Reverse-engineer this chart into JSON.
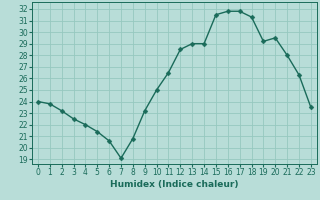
{
  "x": [
    0,
    1,
    2,
    3,
    4,
    5,
    6,
    7,
    8,
    9,
    10,
    11,
    12,
    13,
    14,
    15,
    16,
    17,
    18,
    19,
    20,
    21,
    22,
    23
  ],
  "y": [
    24.0,
    23.8,
    23.2,
    22.5,
    22.0,
    21.4,
    20.6,
    19.1,
    20.8,
    23.2,
    25.0,
    26.5,
    28.5,
    29.0,
    29.0,
    31.5,
    31.8,
    31.8,
    31.3,
    29.2,
    29.5,
    28.0,
    26.3,
    23.5
  ],
  "line_color": "#1a6b5a",
  "marker": "D",
  "markersize": 2.5,
  "linewidth": 1.0,
  "bg_color": "#b8ddd8",
  "grid_color": "#96c8c0",
  "tick_color": "#1a6b5a",
  "xlabel": "Humidex (Indice chaleur)",
  "ylabel_ticks": [
    19,
    20,
    21,
    22,
    23,
    24,
    25,
    26,
    27,
    28,
    29,
    30,
    31,
    32
  ],
  "ylim": [
    18.6,
    32.6
  ],
  "xlim": [
    -0.5,
    23.5
  ],
  "fontsize_label": 6.5,
  "fontsize_tick": 5.5
}
